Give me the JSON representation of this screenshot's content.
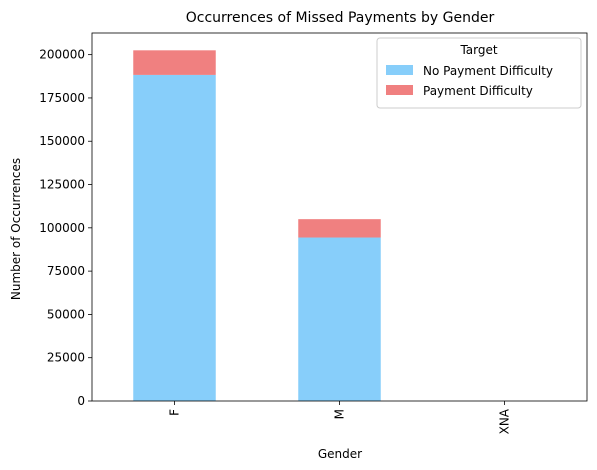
{
  "chart_data": {
    "type": "bar",
    "stacked": true,
    "title": "Occurrences of Missed Payments by Gender",
    "xlabel": "Gender",
    "ylabel": "Number of Occurrences",
    "categories": [
      "F",
      "M",
      "XNA"
    ],
    "series": [
      {
        "name": "No Payment Difficulty",
        "color": "#87CEFA",
        "values": [
          188300,
          94400,
          4
        ]
      },
      {
        "name": "Payment Difficulty",
        "color": "#F08080",
        "values": [
          14200,
          10600,
          0
        ]
      }
    ],
    "ylim": [
      0,
      212500
    ],
    "yticks": [
      0,
      25000,
      50000,
      75000,
      100000,
      125000,
      150000,
      175000,
      200000
    ],
    "grid": false,
    "legend": {
      "title": "Target",
      "placement": "top-right"
    }
  }
}
